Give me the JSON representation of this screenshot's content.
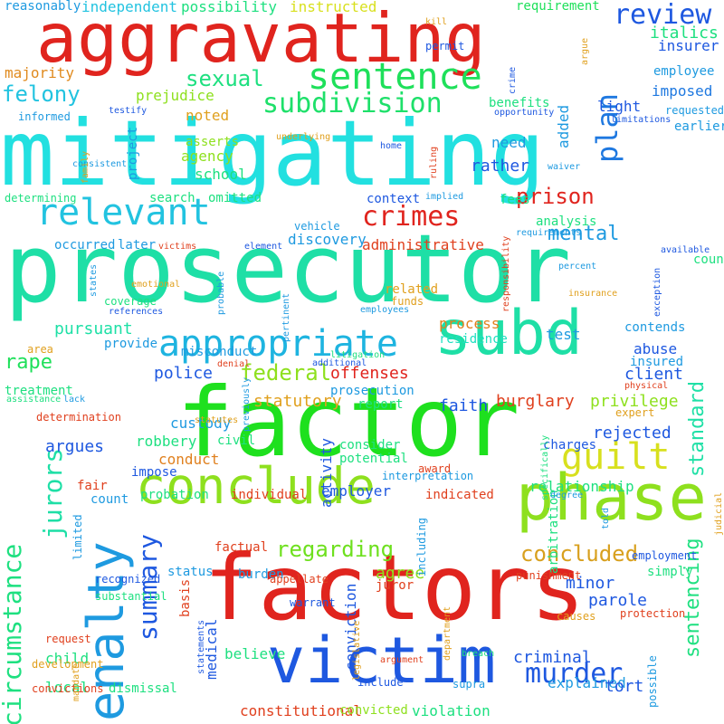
{
  "word_cloud": {
    "words": [
      {
        "text": "mitigating",
        "color": "#22e0e0"
      },
      {
        "text": "prosecutor",
        "color": "#1edfa6"
      },
      {
        "text": "factor",
        "color": "#1ee01e"
      },
      {
        "text": "factors",
        "color": "#e0241e"
      },
      {
        "text": "aggravating",
        "color": "#e0241e"
      },
      {
        "text": "penalty",
        "color": "#1e9ae0"
      },
      {
        "text": "victim",
        "color": "#1e58e0"
      },
      {
        "text": "subd",
        "color": "#1edfa6"
      },
      {
        "text": "phase",
        "color": "#8ee01e"
      },
      {
        "text": "conclude",
        "color": "#8ee01e"
      },
      {
        "text": "relevant",
        "color": "#22c3e0"
      },
      {
        "text": "appropriate",
        "color": "#1eb4e0"
      },
      {
        "text": "sentence",
        "color": "#1ee05a"
      },
      {
        "text": "guilt",
        "color": "#d8e01e"
      },
      {
        "text": "circumstance",
        "color": "#1ee080"
      },
      {
        "text": "jurors",
        "color": "#1edfa6"
      },
      {
        "text": "plan",
        "color": "#1e78e0"
      },
      {
        "text": "review",
        "color": "#1e58e0"
      },
      {
        "text": "crimes",
        "color": "#e0241e"
      },
      {
        "text": "subdivision",
        "color": "#1ee06a"
      },
      {
        "text": "sexual",
        "color": "#1ee080"
      },
      {
        "text": "felony",
        "color": "#22c3e0"
      },
      {
        "text": "summary",
        "color": "#1e58e0"
      },
      {
        "text": "murder",
        "color": "#1e58e0"
      },
      {
        "text": "concluded",
        "color": "#d8a01e"
      },
      {
        "text": "regarding",
        "color": "#6ee01e"
      },
      {
        "text": "sentencing",
        "color": "#1ee080"
      },
      {
        "text": "standard",
        "color": "#1ee0a6"
      },
      {
        "text": "federal",
        "color": "#8ee01e"
      },
      {
        "text": "prison",
        "color": "#e0241e"
      },
      {
        "text": "mental",
        "color": "#1e9ae0"
      },
      {
        "text": "rape",
        "color": "#1ee05a"
      },
      {
        "text": "pursuant",
        "color": "#1ee0a6"
      },
      {
        "text": "italics",
        "color": "#1ee080"
      },
      {
        "text": "insurer",
        "color": "#1e58e0"
      },
      {
        "text": "requirement",
        "color": "#1ee05a"
      },
      {
        "text": "instructed",
        "color": "#d8e01e"
      },
      {
        "text": "independent",
        "color": "#22c3e0"
      },
      {
        "text": "possibility",
        "color": "#1ee080"
      },
      {
        "text": "reasonably",
        "color": "#1e9ae0"
      },
      {
        "text": "majority",
        "color": "#e08a1e"
      },
      {
        "text": "employee",
        "color": "#1e9ae0"
      },
      {
        "text": "imposed",
        "color": "#1e78e0"
      },
      {
        "text": "requested",
        "color": "#1e9ae0"
      },
      {
        "text": "earlier",
        "color": "#1e9ae0"
      },
      {
        "text": "light",
        "color": "#1e58e0"
      },
      {
        "text": "added",
        "color": "#1e9ae0"
      },
      {
        "text": "prejudice",
        "color": "#8ee01e"
      },
      {
        "text": "noted",
        "color": "#e0a01e"
      },
      {
        "text": "informed",
        "color": "#1e9ae0"
      },
      {
        "text": "agency",
        "color": "#8ee01e"
      },
      {
        "text": "school",
        "color": "#1ee080"
      },
      {
        "text": "asserts",
        "color": "#8ee01e"
      },
      {
        "text": "project",
        "color": "#1e9ae0"
      },
      {
        "text": "need",
        "color": "#1e9ae0"
      },
      {
        "text": "rather",
        "color": "#1e58e0"
      },
      {
        "text": "benefits",
        "color": "#1ee080"
      },
      {
        "text": "opportunity",
        "color": "#1e58e0"
      },
      {
        "text": "limitations",
        "color": "#1e58e0"
      },
      {
        "text": "search",
        "color": "#1ee080"
      },
      {
        "text": "omitted",
        "color": "#1ee080"
      },
      {
        "text": "determining",
        "color": "#1ee080"
      },
      {
        "text": "context",
        "color": "#1e58e0"
      },
      {
        "text": "fees",
        "color": "#1ee080"
      },
      {
        "text": "analysis",
        "color": "#1ee080"
      },
      {
        "text": "occurred",
        "color": "#1e9ae0"
      },
      {
        "text": "later",
        "color": "#1e9ae0"
      },
      {
        "text": "discovery",
        "color": "#1e9ae0"
      },
      {
        "text": "administrative",
        "color": "#e0401e"
      },
      {
        "text": "counts",
        "color": "#1ee080"
      },
      {
        "text": "contends",
        "color": "#1e9ae0"
      },
      {
        "text": "related",
        "color": "#e0a01e"
      },
      {
        "text": "process",
        "color": "#e0801e"
      },
      {
        "text": "test",
        "color": "#1e9ae0"
      },
      {
        "text": "provide",
        "color": "#1e9ae0"
      },
      {
        "text": "misconduct",
        "color": "#1e9ae0"
      },
      {
        "text": "residence",
        "color": "#1ee0c0"
      },
      {
        "text": "abuse",
        "color": "#1e58e0"
      },
      {
        "text": "insured",
        "color": "#1e9ae0"
      },
      {
        "text": "client",
        "color": "#1e58e0"
      },
      {
        "text": "police",
        "color": "#1e58e0"
      },
      {
        "text": "offenses",
        "color": "#e0241e"
      },
      {
        "text": "prosecution",
        "color": "#1e9ae0"
      },
      {
        "text": "report",
        "color": "#1ee080"
      },
      {
        "text": "faith",
        "color": "#1e58e0"
      },
      {
        "text": "burglary",
        "color": "#e0401e"
      },
      {
        "text": "privilege",
        "color": "#8ee01e"
      },
      {
        "text": "treatment",
        "color": "#1ee080"
      },
      {
        "text": "statutory",
        "color": "#e0a01e"
      },
      {
        "text": "custody",
        "color": "#1e9ae0"
      },
      {
        "text": "argues",
        "color": "#1e58e0"
      },
      {
        "text": "robbery",
        "color": "#1ee080"
      },
      {
        "text": "rejected",
        "color": "#1e58e0"
      },
      {
        "text": "consider",
        "color": "#1ee080"
      },
      {
        "text": "potential",
        "color": "#1ee080"
      },
      {
        "text": "charges",
        "color": "#1e58e0"
      },
      {
        "text": "conduct",
        "color": "#e0801e"
      },
      {
        "text": "impose",
        "color": "#1e58e0"
      },
      {
        "text": "civil",
        "color": "#1ee080"
      },
      {
        "text": "activity",
        "color": "#1e58e0"
      },
      {
        "text": "employer",
        "color": "#1e58e0"
      },
      {
        "text": "relationship",
        "color": "#1ee080"
      },
      {
        "text": "probation",
        "color": "#1ee080"
      },
      {
        "text": "individual",
        "color": "#e0401e"
      },
      {
        "text": "indicated",
        "color": "#e0401e"
      },
      {
        "text": "fair",
        "color": "#e0401e"
      },
      {
        "text": "count",
        "color": "#1e9ae0"
      },
      {
        "text": "status",
        "color": "#1e9ae0"
      },
      {
        "text": "factual",
        "color": "#e0401e"
      },
      {
        "text": "burden",
        "color": "#1e9ae0"
      },
      {
        "text": "agree",
        "color": "#8ee01e"
      },
      {
        "text": "juror",
        "color": "#e0401e"
      },
      {
        "text": "minor",
        "color": "#1e58e0"
      },
      {
        "text": "parole",
        "color": "#1e58e0"
      },
      {
        "text": "employment",
        "color": "#1e58e0"
      },
      {
        "text": "simply",
        "color": "#1ee080"
      },
      {
        "text": "basis",
        "color": "#e0401e"
      },
      {
        "text": "medical",
        "color": "#1e58e0"
      },
      {
        "text": "believe",
        "color": "#1ee080"
      },
      {
        "text": "child",
        "color": "#1ee080"
      },
      {
        "text": "conviction",
        "color": "#1e58e0"
      },
      {
        "text": "criminal",
        "color": "#1e58e0"
      },
      {
        "text": "explained",
        "color": "#1e9ae0"
      },
      {
        "text": "tort",
        "color": "#1e58e0"
      },
      {
        "text": "local",
        "color": "#1ee080"
      },
      {
        "text": "dismissal",
        "color": "#1ee080"
      },
      {
        "text": "constitutional",
        "color": "#e0401e"
      },
      {
        "text": "convicted",
        "color": "#8ee01e"
      },
      {
        "text": "violation",
        "color": "#1ee080"
      },
      {
        "text": "supra",
        "color": "#1e9ae0"
      },
      {
        "text": "recognized",
        "color": "#1e58e0"
      },
      {
        "text": "appellate",
        "color": "#e0401e"
      },
      {
        "text": "substantial",
        "color": "#1ee080"
      },
      {
        "text": "warrant",
        "color": "#1e58e0"
      },
      {
        "text": "punishment",
        "color": "#e0401e"
      },
      {
        "text": "arbitration",
        "color": "#1ee080"
      },
      {
        "text": "causes",
        "color": "#e0a01e"
      },
      {
        "text": "protection",
        "color": "#e0401e"
      },
      {
        "text": "request",
        "color": "#e0401e"
      },
      {
        "text": "development",
        "color": "#e0a01e"
      },
      {
        "text": "convictions",
        "color": "#e0401e"
      },
      {
        "text": "breach",
        "color": "#1ee080"
      },
      {
        "text": "department",
        "color": "#e0a01e"
      },
      {
        "text": "argument",
        "color": "#e0401e"
      },
      {
        "text": "include",
        "color": "#1e58e0"
      },
      {
        "text": "kill",
        "color": "#e0a01e"
      },
      {
        "text": "permit",
        "color": "#1e58e0"
      },
      {
        "text": "crime",
        "color": "#1e58e0"
      },
      {
        "text": "argue",
        "color": "#e0a01e"
      },
      {
        "text": "testify",
        "color": "#1e58e0"
      },
      {
        "text": "consistent",
        "color": "#1e9ae0"
      },
      {
        "text": "family",
        "color": "#e0a01e"
      },
      {
        "text": "underlying",
        "color": "#e0a01e"
      },
      {
        "text": "home",
        "color": "#1e58e0"
      },
      {
        "text": "ruling",
        "color": "#e0401e"
      },
      {
        "text": "waiver",
        "color": "#1e9ae0"
      },
      {
        "text": "implied",
        "color": "#1e9ae0"
      },
      {
        "text": "vehicle",
        "color": "#1e9ae0"
      },
      {
        "text": "requirements",
        "color": "#1e9ae0"
      },
      {
        "text": "victims",
        "color": "#e0401e"
      },
      {
        "text": "element",
        "color": "#1e58e0"
      },
      {
        "text": "available",
        "color": "#1e58e0"
      },
      {
        "text": "states",
        "color": "#1e9ae0"
      },
      {
        "text": "emotional",
        "color": "#e0a01e"
      },
      {
        "text": "coverage",
        "color": "#1ee080"
      },
      {
        "text": "references",
        "color": "#1e58e0"
      },
      {
        "text": "probable",
        "color": "#1e9ae0"
      },
      {
        "text": "pertinent",
        "color": "#1e9ae0"
      },
      {
        "text": "employees",
        "color": "#1e9ae0"
      },
      {
        "text": "responsibility",
        "color": "#e0401e"
      },
      {
        "text": "funds",
        "color": "#e0a01e"
      },
      {
        "text": "percent",
        "color": "#1e9ae0"
      },
      {
        "text": "insurance",
        "color": "#e0a01e"
      },
      {
        "text": "exception",
        "color": "#1e58e0"
      },
      {
        "text": "area",
        "color": "#e0a01e"
      },
      {
        "text": "denial",
        "color": "#e0401e"
      },
      {
        "text": "additional",
        "color": "#1e58e0"
      },
      {
        "text": "litigation",
        "color": "#1ee080"
      },
      {
        "text": "assistance",
        "color": "#1ee080"
      },
      {
        "text": "lack",
        "color": "#1e9ae0"
      },
      {
        "text": "determination",
        "color": "#e0401e"
      },
      {
        "text": "previously",
        "color": "#1e9ae0"
      },
      {
        "text": "statutes",
        "color": "#e0a01e"
      },
      {
        "text": "physical",
        "color": "#e0401e"
      },
      {
        "text": "expert",
        "color": "#e0a01e"
      },
      {
        "text": "award",
        "color": "#e0401e"
      },
      {
        "text": "interpretation",
        "color": "#1e9ae0"
      },
      {
        "text": "specifically",
        "color": "#1ee080"
      },
      {
        "text": "degree",
        "color": "#1e9ae0"
      },
      {
        "text": "told",
        "color": "#1e9ae0"
      },
      {
        "text": "judicial",
        "color": "#e0a01e"
      },
      {
        "text": "limited",
        "color": "#1e9ae0"
      },
      {
        "text": "including",
        "color": "#1e9ae0"
      },
      {
        "text": "statements",
        "color": "#1e58e0"
      },
      {
        "text": "legislative",
        "color": "#e0a01e"
      },
      {
        "text": "mandate",
        "color": "#e0a01e"
      },
      {
        "text": "possible",
        "color": "#1e9ae0"
      },
      {
        "text": "discussed",
        "color": "#1e58e0"
      },
      {
        "text": "future",
        "color": "#1e9ae0"
      },
      {
        "text": "requires",
        "color": "#e0401e"
      }
    ]
  }
}
